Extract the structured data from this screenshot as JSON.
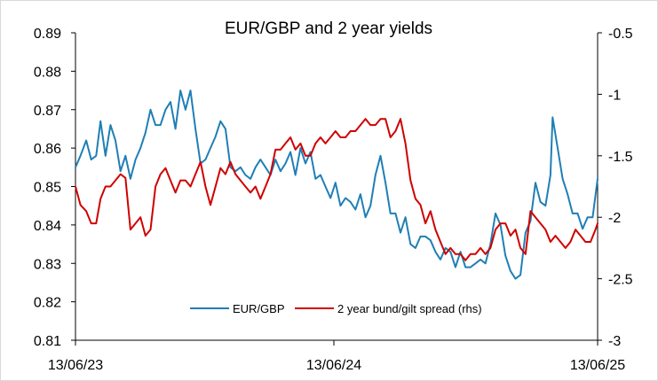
{
  "chart_data": {
    "type": "line",
    "title": "EUR/GBP and 2 year yields",
    "xlabel": "",
    "ylabel": "",
    "x_tick_labels": [
      "13/06/23",
      "13/06/24",
      "13/06/25"
    ],
    "x_range": [
      "2023-06-13",
      "2025-06-13"
    ],
    "y_left": {
      "min": 0.81,
      "max": 0.89,
      "ticks": [
        "0.81",
        "0.82",
        "0.83",
        "0.84",
        "0.85",
        "0.86",
        "0.87",
        "0.88",
        "0.89"
      ]
    },
    "y_right": {
      "min": -3,
      "max": -0.5,
      "ticks": [
        "-3",
        "-2.5",
        "-2",
        "-1.5",
        "-1",
        "-0.5"
      ]
    },
    "grid": false,
    "legend_placement": "bottom-center",
    "colors": {
      "eurgbp": "#1F7FB4",
      "spread": "#D00000"
    },
    "series": [
      {
        "name": "EUR/GBP",
        "axis": "left",
        "color": "#1F7FB4",
        "points": [
          [
            "2023-06-13",
            0.855
          ],
          [
            "2023-06-20",
            0.858
          ],
          [
            "2023-06-28",
            0.862
          ],
          [
            "2023-07-05",
            0.857
          ],
          [
            "2023-07-12",
            0.858
          ],
          [
            "2023-07-18",
            0.867
          ],
          [
            "2023-07-25",
            0.858
          ],
          [
            "2023-08-01",
            0.866
          ],
          [
            "2023-08-08",
            0.862
          ],
          [
            "2023-08-15",
            0.854
          ],
          [
            "2023-08-22",
            0.858
          ],
          [
            "2023-08-29",
            0.852
          ],
          [
            "2023-09-05",
            0.857
          ],
          [
            "2023-09-12",
            0.86
          ],
          [
            "2023-09-19",
            0.864
          ],
          [
            "2023-09-26",
            0.87
          ],
          [
            "2023-10-03",
            0.866
          ],
          [
            "2023-10-10",
            0.866
          ],
          [
            "2023-10-17",
            0.87
          ],
          [
            "2023-10-24",
            0.872
          ],
          [
            "2023-10-31",
            0.865
          ],
          [
            "2023-11-07",
            0.875
          ],
          [
            "2023-11-14",
            0.87
          ],
          [
            "2023-11-21",
            0.875
          ],
          [
            "2023-11-28",
            0.865
          ],
          [
            "2023-12-05",
            0.856
          ],
          [
            "2023-12-12",
            0.857
          ],
          [
            "2023-12-19",
            0.86
          ],
          [
            "2023-12-26",
            0.863
          ],
          [
            "2024-01-02",
            0.867
          ],
          [
            "2024-01-09",
            0.865
          ],
          [
            "2024-01-16",
            0.855
          ],
          [
            "2024-01-23",
            0.854
          ],
          [
            "2024-01-30",
            0.855
          ],
          [
            "2024-02-06",
            0.853
          ],
          [
            "2024-02-13",
            0.852
          ],
          [
            "2024-02-20",
            0.855
          ],
          [
            "2024-02-27",
            0.857
          ],
          [
            "2024-03-05",
            0.855
          ],
          [
            "2024-03-12",
            0.853
          ],
          [
            "2024-03-19",
            0.857
          ],
          [
            "2024-03-26",
            0.854
          ],
          [
            "2024-04-02",
            0.856
          ],
          [
            "2024-04-09",
            0.859
          ],
          [
            "2024-04-16",
            0.853
          ],
          [
            "2024-04-23",
            0.86
          ],
          [
            "2024-04-30",
            0.856
          ],
          [
            "2024-05-07",
            0.859
          ],
          [
            "2024-05-14",
            0.852
          ],
          [
            "2024-05-21",
            0.853
          ],
          [
            "2024-05-28",
            0.85
          ],
          [
            "2024-06-04",
            0.847
          ],
          [
            "2024-06-11",
            0.851
          ],
          [
            "2024-06-18",
            0.845
          ],
          [
            "2024-06-25",
            0.847
          ],
          [
            "2024-07-02",
            0.846
          ],
          [
            "2024-07-09",
            0.844
          ],
          [
            "2024-07-16",
            0.848
          ],
          [
            "2024-07-23",
            0.842
          ],
          [
            "2024-07-30",
            0.845
          ],
          [
            "2024-08-06",
            0.853
          ],
          [
            "2024-08-13",
            0.858
          ],
          [
            "2024-08-20",
            0.851
          ],
          [
            "2024-08-27",
            0.843
          ],
          [
            "2024-09-03",
            0.843
          ],
          [
            "2024-09-10",
            0.838
          ],
          [
            "2024-09-17",
            0.842
          ],
          [
            "2024-09-24",
            0.835
          ],
          [
            "2024-10-01",
            0.834
          ],
          [
            "2024-10-08",
            0.837
          ],
          [
            "2024-10-15",
            0.837
          ],
          [
            "2024-10-22",
            0.836
          ],
          [
            "2024-10-29",
            0.833
          ],
          [
            "2024-11-05",
            0.831
          ],
          [
            "2024-11-12",
            0.834
          ],
          [
            "2024-11-19",
            0.833
          ],
          [
            "2024-11-26",
            0.829
          ],
          [
            "2024-12-03",
            0.833
          ],
          [
            "2024-12-10",
            0.829
          ],
          [
            "2024-12-17",
            0.829
          ],
          [
            "2024-12-24",
            0.83
          ],
          [
            "2024-12-31",
            0.831
          ],
          [
            "2025-01-07",
            0.83
          ],
          [
            "2025-01-14",
            0.835
          ],
          [
            "2025-01-21",
            0.843
          ],
          [
            "2025-01-28",
            0.84
          ],
          [
            "2025-02-04",
            0.832
          ],
          [
            "2025-02-11",
            0.828
          ],
          [
            "2025-02-18",
            0.826
          ],
          [
            "2025-02-25",
            0.827
          ],
          [
            "2025-03-04",
            0.838
          ],
          [
            "2025-03-11",
            0.841
          ],
          [
            "2025-03-18",
            0.851
          ],
          [
            "2025-03-25",
            0.846
          ],
          [
            "2025-04-01",
            0.845
          ],
          [
            "2025-04-08",
            0.853
          ],
          [
            "2025-04-11",
            0.868
          ],
          [
            "2025-04-18",
            0.86
          ],
          [
            "2025-04-25",
            0.852
          ],
          [
            "2025-05-02",
            0.848
          ],
          [
            "2025-05-09",
            0.843
          ],
          [
            "2025-05-16",
            0.843
          ],
          [
            "2025-05-23",
            0.839
          ],
          [
            "2025-05-30",
            0.842
          ],
          [
            "2025-06-06",
            0.842
          ],
          [
            "2025-06-13",
            0.852
          ]
        ]
      },
      {
        "name": "2 year bund/gilt spread (rhs)",
        "axis": "right",
        "color": "#D00000",
        "points": [
          [
            "2023-06-13",
            -1.75
          ],
          [
            "2023-06-20",
            -1.9
          ],
          [
            "2023-06-28",
            -1.95
          ],
          [
            "2023-07-05",
            -2.05
          ],
          [
            "2023-07-12",
            -2.05
          ],
          [
            "2023-07-18",
            -1.85
          ],
          [
            "2023-07-25",
            -1.75
          ],
          [
            "2023-08-01",
            -1.75
          ],
          [
            "2023-08-08",
            -1.7
          ],
          [
            "2023-08-15",
            -1.65
          ],
          [
            "2023-08-22",
            -1.68
          ],
          [
            "2023-08-29",
            -2.1
          ],
          [
            "2023-09-05",
            -2.05
          ],
          [
            "2023-09-12",
            -2.0
          ],
          [
            "2023-09-19",
            -2.15
          ],
          [
            "2023-09-26",
            -2.1
          ],
          [
            "2023-10-03",
            -1.75
          ],
          [
            "2023-10-10",
            -1.65
          ],
          [
            "2023-10-17",
            -1.6
          ],
          [
            "2023-10-24",
            -1.7
          ],
          [
            "2023-10-31",
            -1.8
          ],
          [
            "2023-11-07",
            -1.7
          ],
          [
            "2023-11-14",
            -1.7
          ],
          [
            "2023-11-21",
            -1.75
          ],
          [
            "2023-11-28",
            -1.65
          ],
          [
            "2023-12-05",
            -1.55
          ],
          [
            "2023-12-12",
            -1.75
          ],
          [
            "2023-12-19",
            -1.9
          ],
          [
            "2023-12-26",
            -1.75
          ],
          [
            "2024-01-02",
            -1.6
          ],
          [
            "2024-01-09",
            -1.65
          ],
          [
            "2024-01-16",
            -1.55
          ],
          [
            "2024-01-23",
            -1.65
          ],
          [
            "2024-01-30",
            -1.7
          ],
          [
            "2024-02-06",
            -1.75
          ],
          [
            "2024-02-13",
            -1.8
          ],
          [
            "2024-02-20",
            -1.75
          ],
          [
            "2024-02-27",
            -1.85
          ],
          [
            "2024-03-05",
            -1.75
          ],
          [
            "2024-03-12",
            -1.65
          ],
          [
            "2024-03-19",
            -1.45
          ],
          [
            "2024-03-26",
            -1.45
          ],
          [
            "2024-04-02",
            -1.4
          ],
          [
            "2024-04-09",
            -1.35
          ],
          [
            "2024-04-16",
            -1.45
          ],
          [
            "2024-04-23",
            -1.4
          ],
          [
            "2024-04-30",
            -1.5
          ],
          [
            "2024-05-07",
            -1.5
          ],
          [
            "2024-05-14",
            -1.4
          ],
          [
            "2024-05-21",
            -1.35
          ],
          [
            "2024-05-28",
            -1.4
          ],
          [
            "2024-06-04",
            -1.35
          ],
          [
            "2024-06-11",
            -1.3
          ],
          [
            "2024-06-18",
            -1.35
          ],
          [
            "2024-06-25",
            -1.35
          ],
          [
            "2024-07-02",
            -1.3
          ],
          [
            "2024-07-09",
            -1.3
          ],
          [
            "2024-07-16",
            -1.25
          ],
          [
            "2024-07-23",
            -1.2
          ],
          [
            "2024-07-30",
            -1.25
          ],
          [
            "2024-08-06",
            -1.25
          ],
          [
            "2024-08-13",
            -1.2
          ],
          [
            "2024-08-20",
            -1.2
          ],
          [
            "2024-08-27",
            -1.35
          ],
          [
            "2024-09-03",
            -1.3
          ],
          [
            "2024-09-10",
            -1.2
          ],
          [
            "2024-09-17",
            -1.4
          ],
          [
            "2024-09-24",
            -1.7
          ],
          [
            "2024-10-01",
            -1.85
          ],
          [
            "2024-10-08",
            -1.9
          ],
          [
            "2024-10-15",
            -2.05
          ],
          [
            "2024-10-22",
            -1.95
          ],
          [
            "2024-10-29",
            -2.1
          ],
          [
            "2024-11-05",
            -2.2
          ],
          [
            "2024-11-12",
            -2.3
          ],
          [
            "2024-11-19",
            -2.25
          ],
          [
            "2024-11-26",
            -2.3
          ],
          [
            "2024-12-03",
            -2.3
          ],
          [
            "2024-12-10",
            -2.35
          ],
          [
            "2024-12-17",
            -2.3
          ],
          [
            "2024-12-24",
            -2.3
          ],
          [
            "2024-12-31",
            -2.25
          ],
          [
            "2025-01-07",
            -2.3
          ],
          [
            "2025-01-14",
            -2.25
          ],
          [
            "2025-01-21",
            -2.1
          ],
          [
            "2025-01-28",
            -2.05
          ],
          [
            "2025-02-04",
            -2.05
          ],
          [
            "2025-02-11",
            -2.15
          ],
          [
            "2025-02-18",
            -2.1
          ],
          [
            "2025-02-25",
            -2.25
          ],
          [
            "2025-03-04",
            -2.3
          ],
          [
            "2025-03-11",
            -1.95
          ],
          [
            "2025-03-18",
            -2.0
          ],
          [
            "2025-03-25",
            -2.05
          ],
          [
            "2025-04-01",
            -2.1
          ],
          [
            "2025-04-08",
            -2.2
          ],
          [
            "2025-04-15",
            -2.15
          ],
          [
            "2025-04-22",
            -2.2
          ],
          [
            "2025-04-29",
            -2.25
          ],
          [
            "2025-05-06",
            -2.2
          ],
          [
            "2025-05-13",
            -2.1
          ],
          [
            "2025-05-20",
            -2.15
          ],
          [
            "2025-05-27",
            -2.2
          ],
          [
            "2025-06-03",
            -2.2
          ],
          [
            "2025-06-10",
            -2.1
          ],
          [
            "2025-06-13",
            -2.05
          ]
        ]
      }
    ]
  }
}
